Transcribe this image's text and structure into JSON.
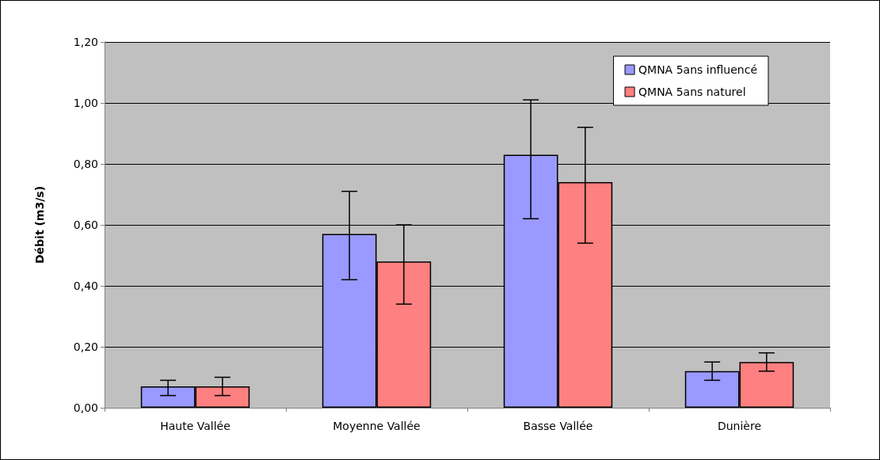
{
  "chart_data": {
    "type": "bar",
    "ylabel": "Débit (m3/s)",
    "categories": [
      "Haute Vallée",
      "Moyenne Vallée",
      "Basse Vallée",
      "Dunière"
    ],
    "series": [
      {
        "name": "QMNA 5ans influencé",
        "color": "#9999ff",
        "values": [
          0.07,
          0.57,
          0.83,
          0.12
        ],
        "errors": [
          [
            0.04,
            0.09
          ],
          [
            0.42,
            0.71
          ],
          [
            0.62,
            1.01
          ],
          [
            0.09,
            0.15
          ]
        ]
      },
      {
        "name": "QMNA 5ans naturel",
        "color": "#ff8080",
        "values": [
          0.07,
          0.48,
          0.74,
          0.15
        ],
        "errors": [
          [
            0.04,
            0.1
          ],
          [
            0.34,
            0.6
          ],
          [
            0.54,
            0.92
          ],
          [
            0.12,
            0.18
          ]
        ]
      }
    ],
    "ylim": [
      0,
      1.2
    ],
    "yticks": [
      {
        "value": 0,
        "label": "0,00"
      },
      {
        "value": 0.2,
        "label": "0,20"
      },
      {
        "value": 0.4,
        "label": "0,40"
      },
      {
        "value": 0.6,
        "label": "0,60"
      },
      {
        "value": 0.8,
        "label": "0,80"
      },
      {
        "value": 1.0,
        "label": "1,00"
      },
      {
        "value": 1.2,
        "label": "1,20"
      }
    ],
    "grid": "y",
    "legend": "top right"
  }
}
